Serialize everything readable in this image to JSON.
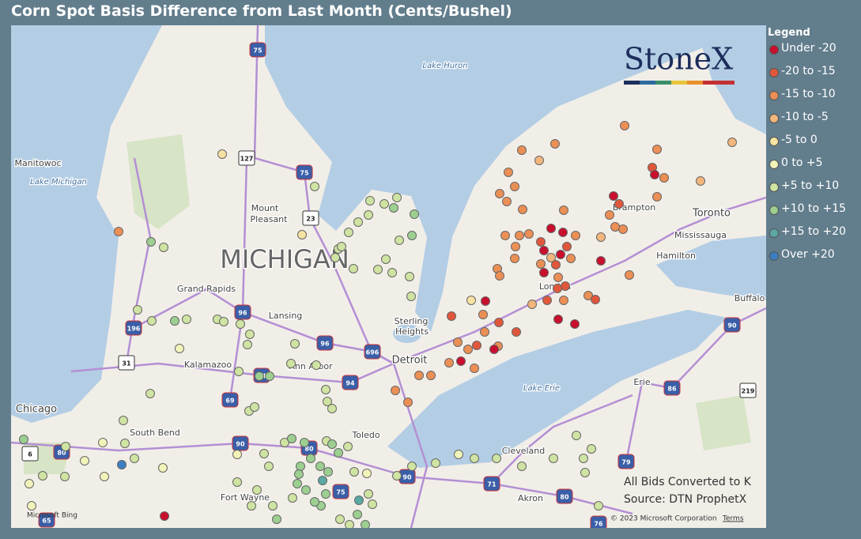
{
  "header": {
    "title": "Corn Spot Basis Difference from Last Month (Cents/Bushel)"
  },
  "legend": {
    "title": "Legend",
    "items": [
      {
        "label": "Under -20",
        "color": "#c8102e"
      },
      {
        "label": "-20 to -15",
        "color": "#e0573c"
      },
      {
        "label": "-15 to -10",
        "color": "#ec8f55"
      },
      {
        "label": "-10 to -5",
        "color": "#f2b67c"
      },
      {
        "label": "-5 to 0",
        "color": "#f6e2a2"
      },
      {
        "label": "0 to +5",
        "color": "#f2f3b9"
      },
      {
        "label": "+5 to +10",
        "color": "#cfe3a2"
      },
      {
        "label": "+10 to +15",
        "color": "#9ccf90"
      },
      {
        "label": "+15 to +20",
        "color": "#5aa9a3"
      },
      {
        "label": "Over +20",
        "color": "#3b7fc0"
      }
    ]
  },
  "logo": "StoneX",
  "notes": [
    "All Bids Converted to K",
    "Source: DTN ProphetX"
  ],
  "attribution": {
    "copyright": "© 2023 Microsoft Corporation",
    "terms": "Terms",
    "provider": "Microsoft Bing"
  },
  "map": {
    "labels": [
      {
        "text": "Lake Huron",
        "kind": "water"
      },
      {
        "text": "Manitowoc",
        "kind": "city"
      },
      {
        "text": "Lake Michigan",
        "kind": "water"
      },
      {
        "text": "MICHIGAN",
        "kind": "state"
      },
      {
        "text": "Mount",
        "kind": "city"
      },
      {
        "text": "Pleasant",
        "kind": "city"
      },
      {
        "text": "Grand Rapids",
        "kind": "city"
      },
      {
        "text": "Lansing",
        "kind": "city"
      },
      {
        "text": "Sterling",
        "kind": "city"
      },
      {
        "text": "Heights",
        "kind": "city"
      },
      {
        "text": "Kalamazoo",
        "kind": "city"
      },
      {
        "text": "Ann Arbor",
        "kind": "city"
      },
      {
        "text": "Detroit",
        "kind": "bigcity"
      },
      {
        "text": "Chicago",
        "kind": "bigcity"
      },
      {
        "text": "South Bend",
        "kind": "city"
      },
      {
        "text": "Toledo",
        "kind": "city"
      },
      {
        "text": "Cleveland",
        "kind": "city"
      },
      {
        "text": "Akron",
        "kind": "city"
      },
      {
        "text": "Fort Wayne",
        "kind": "city"
      },
      {
        "text": "Lake Erie",
        "kind": "water"
      },
      {
        "text": "Erie",
        "kind": "city"
      },
      {
        "text": "Brampton",
        "kind": "city"
      },
      {
        "text": "Toronto",
        "kind": "bigcity"
      },
      {
        "text": "Mississauga",
        "kind": "city"
      },
      {
        "text": "Hamilton",
        "kind": "city"
      },
      {
        "text": "London",
        "kind": "city"
      },
      {
        "text": "Buffalo",
        "kind": "city"
      }
    ],
    "shields": [
      {
        "label": "75",
        "type": "interstate"
      },
      {
        "label": "127",
        "type": "us"
      },
      {
        "label": "75",
        "type": "interstate"
      },
      {
        "label": "23",
        "type": "us"
      },
      {
        "label": "96",
        "type": "interstate"
      },
      {
        "label": "196",
        "type": "interstate"
      },
      {
        "label": "96",
        "type": "interstate"
      },
      {
        "label": "696",
        "type": "interstate"
      },
      {
        "label": "31",
        "type": "us"
      },
      {
        "label": "94",
        "type": "interstate"
      },
      {
        "label": "94",
        "type": "interstate"
      },
      {
        "label": "69",
        "type": "interstate"
      },
      {
        "label": "80",
        "type": "interstate"
      },
      {
        "label": "6",
        "type": "us"
      },
      {
        "label": "90",
        "type": "interstate"
      },
      {
        "label": "80",
        "type": "interstate"
      },
      {
        "label": "75",
        "type": "interstate"
      },
      {
        "label": "90",
        "type": "interstate"
      },
      {
        "label": "71",
        "type": "interstate"
      },
      {
        "label": "80",
        "type": "interstate"
      },
      {
        "label": "79",
        "type": "interstate"
      },
      {
        "label": "86",
        "type": "interstate"
      },
      {
        "label": "90",
        "type": "interstate"
      },
      {
        "label": "76",
        "type": "interstate"
      },
      {
        "label": "65",
        "type": "interstate"
      },
      {
        "label": "219",
        "type": "us"
      }
    ]
  }
}
